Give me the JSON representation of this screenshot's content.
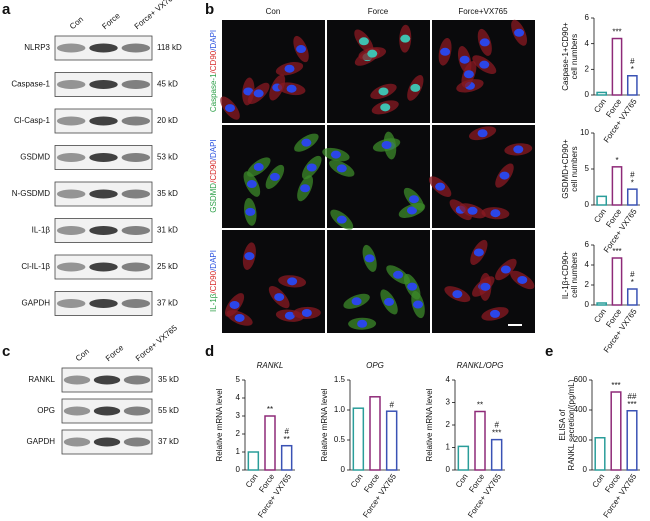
{
  "panel_labels": [
    "a",
    "b",
    "c",
    "d",
    "e"
  ],
  "blot_a": {
    "lanes": [
      "Con",
      "Force",
      "Force+ VX765"
    ],
    "rows": [
      {
        "name": "NLRP3",
        "size": "118 kD"
      },
      {
        "name": "Caspase-1",
        "size": "45 kD"
      },
      {
        "name": "Cl-Casp-1",
        "size": "20 kD"
      },
      {
        "name": "GSDMD",
        "size": "53 kD"
      },
      {
        "name": "N-GSDMD",
        "size": "35 kD"
      },
      {
        "name": "IL-1β",
        "size": "31 kD"
      },
      {
        "name": "Cl-IL-1β",
        "size": "25 kD"
      },
      {
        "name": "GAPDH",
        "size": "37 kD"
      }
    ]
  },
  "blot_c": {
    "lanes": [
      "Con",
      "Force",
      "Force+ VX765"
    ],
    "rows": [
      {
        "name": "RANKL",
        "size": "35 kD"
      },
      {
        "name": "OPG",
        "size": "55 kD"
      },
      {
        "name": "GAPDH",
        "size": "37 kD"
      }
    ]
  },
  "microscopy": {
    "columns": [
      "Con",
      "Force",
      "Force+VX765"
    ],
    "rows": [
      [
        "Caspase-1",
        "/CD90",
        "/DAPI"
      ],
      [
        "GSDMD",
        "/CD90",
        "/DAPI"
      ],
      [
        "IL-1β",
        "/CD90",
        "/DAPI"
      ]
    ]
  },
  "chart_data": [
    {
      "type": "bar",
      "ylabel": [
        "Caspase-1+CD90+",
        "cell numbers"
      ],
      "categories": [
        "Con",
        "Force",
        "Force+ VX765"
      ],
      "values": [
        0.2,
        4.4,
        1.5
      ],
      "colors": [
        "#2a9d9a",
        "#8e2a78",
        "#3a52b4"
      ],
      "annotations": [
        null,
        [
          "***"
        ],
        [
          "#",
          "*"
        ]
      ],
      "ylim": [
        0,
        6
      ],
      "yticks": [
        0,
        2,
        4,
        6
      ]
    },
    {
      "type": "bar",
      "ylabel": [
        "GSDMD+CD90+",
        "cell numbers"
      ],
      "categories": [
        "Con",
        "Force",
        "Force+ VX765"
      ],
      "values": [
        1.2,
        5.3,
        2.2
      ],
      "colors": [
        "#2a9d9a",
        "#8e2a78",
        "#3a52b4"
      ],
      "annotations": [
        null,
        [
          "*"
        ],
        [
          "#",
          "*"
        ]
      ],
      "ylim": [
        0,
        10
      ],
      "yticks": [
        0,
        5,
        10
      ]
    },
    {
      "type": "bar",
      "ylabel": [
        "IL-1β+CD90+",
        "cell numbers"
      ],
      "categories": [
        "Con",
        "Force",
        "Force+ VX765"
      ],
      "values": [
        0.2,
        4.7,
        1.6
      ],
      "colors": [
        "#2a9d9a",
        "#8e2a78",
        "#3a52b4"
      ],
      "annotations": [
        null,
        [
          "***"
        ],
        [
          "#",
          "*"
        ]
      ],
      "ylim": [
        0,
        6
      ],
      "yticks": [
        0,
        2,
        4,
        6
      ]
    },
    {
      "type": "bar",
      "title": "RANKL",
      "ylabel": [
        "Relative mRNA level"
      ],
      "categories": [
        "Con",
        "Force",
        "Force+ VX765"
      ],
      "values": [
        1.0,
        3.0,
        1.35
      ],
      "colors": [
        "#2a9d9a",
        "#8e2a78",
        "#3a52b4"
      ],
      "annotations": [
        null,
        [
          "**"
        ],
        [
          "#",
          "**"
        ]
      ],
      "ylim": [
        0,
        5
      ],
      "yticks": [
        0,
        1,
        2,
        3,
        4,
        5
      ]
    },
    {
      "type": "bar",
      "title": "OPG",
      "ylabel": [
        "Relative mRNA level"
      ],
      "categories": [
        "Con",
        "Force",
        "Force+ VX765"
      ],
      "values": [
        1.03,
        1.22,
        0.98
      ],
      "colors": [
        "#2a9d9a",
        "#8e2a78",
        "#3a52b4"
      ],
      "annotations": [
        null,
        null,
        [
          "#"
        ]
      ],
      "ylim": [
        0,
        1.5
      ],
      "yticks": [
        0,
        0.5,
        {
          "value": 1,
          "label": "1.0"
        },
        1.5
      ]
    },
    {
      "type": "bar",
      "title": "RANKL/OPG",
      "ylabel": [
        "Relative mRNA level"
      ],
      "categories": [
        "Con",
        "Force",
        "Force+ VX765"
      ],
      "values": [
        1.05,
        2.6,
        1.35
      ],
      "colors": [
        "#2a9d9a",
        "#8e2a78",
        "#3a52b4"
      ],
      "annotations": [
        null,
        [
          "**"
        ],
        [
          "#",
          "***"
        ]
      ],
      "ylim": [
        0,
        4
      ],
      "yticks": [
        0,
        1,
        2,
        3,
        4
      ]
    },
    {
      "type": "bar",
      "ylabel": [
        "ELISA of",
        "RANKL secretion/(pg/mL)"
      ],
      "categories": [
        "Con",
        "Force",
        "Force+ VX765"
      ],
      "values": [
        215,
        520,
        395
      ],
      "colors": [
        "#2a9d9a",
        "#8e2a78",
        "#3a52b4"
      ],
      "annotations": [
        null,
        [
          "***"
        ],
        [
          "##",
          "***"
        ]
      ],
      "ylim": [
        0,
        600
      ],
      "yticks": [
        0,
        200,
        400,
        600
      ]
    }
  ]
}
